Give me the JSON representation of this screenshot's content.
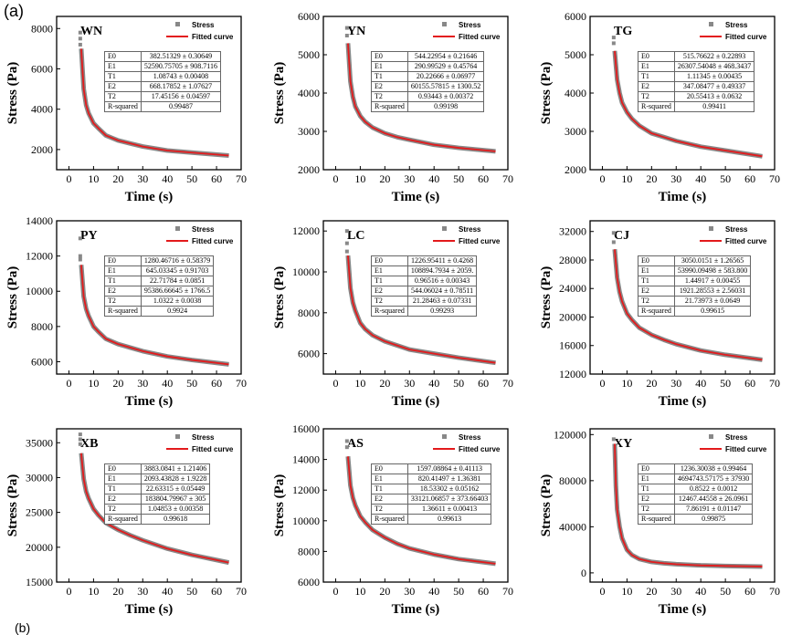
{
  "figure_labels": {
    "a": "(a)",
    "b": "(b)"
  },
  "chart_data": [
    {
      "type": "line",
      "title": "WN",
      "xlabel": "Time (s)",
      "ylabel": "Stress (Pa)",
      "xlim": [
        -5,
        70
      ],
      "ylim": [
        1000,
        8600
      ],
      "xticks": [
        0,
        10,
        20,
        30,
        40,
        50,
        60,
        70
      ],
      "yticks": [
        2000,
        4000,
        6000,
        8000
      ],
      "legend": [
        "Stress",
        "Fitted curve"
      ],
      "legend_position": "top-right",
      "scatter_start": [
        7800,
        7500,
        7200
      ],
      "x": [
        5,
        6,
        7,
        8,
        10,
        12,
        15,
        20,
        25,
        30,
        40,
        50,
        65
      ],
      "y": [
        7000,
        5000,
        4200,
        3800,
        3300,
        3050,
        2700,
        2450,
        2300,
        2150,
        1950,
        1850,
        1700
      ],
      "params": [
        [
          "E0",
          "382.51329 ± 0.30649"
        ],
        [
          "E1",
          "52590.75705 ± 908.7116"
        ],
        [
          "T1",
          "1.08743 ± 0.00408"
        ],
        [
          "E2",
          "668.17852 ± 1.07627"
        ],
        [
          "T2",
          "17.45156 ± 0.04597"
        ],
        [
          "R-squared",
          "0.99487"
        ]
      ]
    },
    {
      "type": "line",
      "title": "YN",
      "xlabel": "Time (s)",
      "ylabel": "Stress (Pa)",
      "xlim": [
        -5,
        70
      ],
      "ylim": [
        2000,
        6000
      ],
      "xticks": [
        0,
        10,
        20,
        30,
        40,
        50,
        60,
        70
      ],
      "yticks": [
        2000,
        3000,
        4000,
        5000,
        6000
      ],
      "legend": [
        "Stress",
        "Fitted curve"
      ],
      "legend_position": "top-right",
      "scatter_start": [
        5700,
        5500
      ],
      "x": [
        5,
        6,
        7,
        8,
        10,
        12,
        15,
        20,
        25,
        30,
        40,
        50,
        65
      ],
      "y": [
        5300,
        4300,
        3900,
        3650,
        3400,
        3250,
        3100,
        2950,
        2850,
        2780,
        2650,
        2570,
        2480
      ],
      "params": [
        [
          "E0",
          "544.22954 ± 0.21646"
        ],
        [
          "E1",
          "290.99529 ± 0.45764"
        ],
        [
          "T1",
          "20.22666 ± 0.06977"
        ],
        [
          "E2",
          "60155.57815 ± 1300.52"
        ],
        [
          "T2",
          "0.93443 ± 0.00372"
        ],
        [
          "R-squared",
          "0.99198"
        ]
      ]
    },
    {
      "type": "line",
      "title": "TG",
      "xlabel": "Time (s)",
      "ylabel": "Stress (Pa)",
      "xlim": [
        -5,
        70
      ],
      "ylim": [
        2000,
        6000
      ],
      "xticks": [
        0,
        10,
        20,
        30,
        40,
        50,
        60,
        70
      ],
      "yticks": [
        2000,
        3000,
        4000,
        5000,
        6000
      ],
      "legend": [
        "Stress",
        "Fitted curve"
      ],
      "legend_position": "top-right",
      "scatter_start": [
        5450,
        5300
      ],
      "x": [
        5,
        6,
        7,
        8,
        10,
        12,
        15,
        20,
        25,
        30,
        40,
        50,
        65
      ],
      "y": [
        5100,
        4350,
        4000,
        3750,
        3500,
        3330,
        3150,
        2950,
        2850,
        2750,
        2600,
        2500,
        2350
      ],
      "params": [
        [
          "E0",
          "515.76622 ± 0.22893"
        ],
        [
          "E1",
          "26307.54048 ± 468.3437"
        ],
        [
          "T1",
          "1.11345 ± 0.00435"
        ],
        [
          "E2",
          "347.08477 ± 0.49337"
        ],
        [
          "T2",
          "20.55413 ± 0.0632"
        ],
        [
          "R-squared",
          "0.99411"
        ]
      ]
    },
    {
      "type": "line",
      "title": "PY",
      "xlabel": "Time (s)",
      "ylabel": "Stress (Pa)",
      "xlim": [
        -5,
        70
      ],
      "ylim": [
        5300,
        14000
      ],
      "xticks": [
        0,
        10,
        20,
        30,
        40,
        50,
        60,
        70
      ],
      "yticks": [
        6000,
        8000,
        10000,
        12000,
        14000
      ],
      "legend": [
        "Stress",
        "Fitted curve"
      ],
      "legend_position": "top-right",
      "scatter_start": [
        13000,
        12000,
        11800
      ],
      "x": [
        5,
        6,
        7,
        8,
        10,
        12,
        15,
        20,
        25,
        30,
        40,
        50,
        65
      ],
      "y": [
        11500,
        9700,
        9000,
        8600,
        8000,
        7700,
        7300,
        7000,
        6800,
        6600,
        6300,
        6100,
        5850
      ],
      "params": [
        [
          "E0",
          "1280.46716 ± 0.58379"
        ],
        [
          "E1",
          "645.03345 ± 0.91703"
        ],
        [
          "T1",
          "22.71784 ± 0.0851"
        ],
        [
          "E2",
          "95386.66645 ± 1766.5"
        ],
        [
          "T2",
          "1.0322 ± 0.0038"
        ],
        [
          "R-squared",
          "0.9924"
        ]
      ]
    },
    {
      "type": "line",
      "title": "LC",
      "xlabel": "Time (s)",
      "ylabel": "Stress (Pa)",
      "xlim": [
        -5,
        70
      ],
      "ylim": [
        5000,
        12500
      ],
      "xticks": [
        0,
        10,
        20,
        30,
        40,
        50,
        60,
        70
      ],
      "yticks": [
        6000,
        8000,
        10000,
        12000
      ],
      "legend": [
        "Stress",
        "Fitted curve"
      ],
      "legend_position": "top-right",
      "scatter_start": [
        12000,
        11400,
        11000
      ],
      "x": [
        5,
        6,
        7,
        8,
        10,
        12,
        15,
        20,
        25,
        30,
        40,
        50,
        65
      ],
      "y": [
        10800,
        9200,
        8500,
        8100,
        7500,
        7200,
        6900,
        6600,
        6400,
        6200,
        6000,
        5800,
        5550
      ],
      "params": [
        [
          "E0",
          "1226.95411 ± 0.4268"
        ],
        [
          "E1",
          "108894.7934 ± 2059."
        ],
        [
          "T1",
          "0.96516 ± 0.00343"
        ],
        [
          "E2",
          "544.06024 ± 0.78511"
        ],
        [
          "T2",
          "21.28463 ± 0.07331"
        ],
        [
          "R-squared",
          "0.99293"
        ]
      ]
    },
    {
      "type": "line",
      "title": "CJ",
      "xlabel": "Time (s)",
      "ylabel": "Stress (Pa)",
      "xlim": [
        -5,
        70
      ],
      "ylim": [
        12000,
        33500
      ],
      "xticks": [
        0,
        10,
        20,
        30,
        40,
        50,
        60,
        70
      ],
      "yticks": [
        12000,
        16000,
        20000,
        24000,
        28000,
        32000
      ],
      "legend": [
        "Stress",
        "Fitted curve"
      ],
      "legend_position": "top-right",
      "scatter_start": [
        31800,
        30500
      ],
      "x": [
        5,
        6,
        7,
        8,
        10,
        12,
        15,
        20,
        25,
        30,
        40,
        50,
        65
      ],
      "y": [
        29500,
        25500,
        23500,
        22200,
        20500,
        19600,
        18500,
        17500,
        16800,
        16200,
        15300,
        14700,
        14000
      ],
      "params": [
        [
          "E0",
          "3050.0151 ± 1.26565"
        ],
        [
          "E1",
          "53990.09498 ± 583.800"
        ],
        [
          "T1",
          "1.44917 ± 0.00455"
        ],
        [
          "E2",
          "1921.28553 ± 2.56031"
        ],
        [
          "T2",
          "21.73973 ± 0.0649"
        ],
        [
          "R-squared",
          "0.99615"
        ]
      ]
    },
    {
      "type": "line",
      "title": "XB",
      "xlabel": "Time (s)",
      "ylabel": "Stress (Pa)",
      "xlim": [
        -5,
        70
      ],
      "ylim": [
        15000,
        37000
      ],
      "xticks": [
        0,
        10,
        20,
        30,
        40,
        50,
        60,
        70
      ],
      "yticks": [
        15000,
        20000,
        25000,
        30000,
        35000
      ],
      "legend": [
        "Stress",
        "Fitted curve"
      ],
      "legend_position": "top-right",
      "scatter_start": [
        36200,
        35500,
        34800
      ],
      "x": [
        5,
        6,
        7,
        8,
        10,
        12,
        15,
        20,
        25,
        30,
        40,
        50,
        65
      ],
      "y": [
        33500,
        29800,
        28000,
        27000,
        25500,
        24600,
        23500,
        22500,
        21700,
        21000,
        19800,
        18900,
        17800
      ],
      "params": [
        [
          "E0",
          "3883.0841 ± 1.21406"
        ],
        [
          "E1",
          "2093.43828 ± 1.9228"
        ],
        [
          "T1",
          "22.63315 ± 0.05449"
        ],
        [
          "E2",
          "183804.79967 ± 305"
        ],
        [
          "T2",
          "1.04853 ± 0.00358"
        ],
        [
          "R-squared",
          "0.99618"
        ]
      ]
    },
    {
      "type": "line",
      "title": "AS",
      "xlabel": "Time (s)",
      "ylabel": "Stress (Pa)",
      "xlim": [
        -5,
        70
      ],
      "ylim": [
        6000,
        16000
      ],
      "xticks": [
        0,
        10,
        20,
        30,
        40,
        50,
        60,
        70
      ],
      "yticks": [
        6000,
        8000,
        10000,
        12000,
        14000,
        16000
      ],
      "legend": [
        "Stress",
        "Fitted curve"
      ],
      "legend_position": "top-right",
      "scatter_start": [
        15200,
        14800
      ],
      "x": [
        5,
        6,
        7,
        8,
        10,
        12,
        15,
        20,
        25,
        30,
        40,
        50,
        65
      ],
      "y": [
        14200,
        12300,
        11500,
        11000,
        10300,
        9900,
        9400,
        8900,
        8500,
        8200,
        7800,
        7500,
        7200
      ],
      "params": [
        [
          "E0",
          "1597.08864 ± 0.41113"
        ],
        [
          "E1",
          "820.41497 ± 1.36381"
        ],
        [
          "T1",
          "18.53302 ± 0.05162"
        ],
        [
          "E2",
          "33121.06857 ± 373.66403"
        ],
        [
          "T2",
          "1.36611 ± 0.00413"
        ],
        [
          "R-squared",
          "0.99613"
        ]
      ]
    },
    {
      "type": "line",
      "title": "XY",
      "xlabel": "Time (s)",
      "ylabel": "Stress (Pa)",
      "xlim": [
        -5,
        70
      ],
      "ylim": [
        -8000,
        125000
      ],
      "xticks": [
        0,
        10,
        20,
        30,
        40,
        50,
        60,
        70
      ],
      "yticks": [
        0,
        40000,
        80000,
        120000
      ],
      "legend": [
        "Stress",
        "Fitted curve"
      ],
      "legend_position": "top-right",
      "scatter_start": [
        116000
      ],
      "x": [
        5,
        5.5,
        6,
        7,
        8,
        10,
        12,
        15,
        20,
        25,
        30,
        40,
        50,
        65
      ],
      "y": [
        112000,
        75000,
        55000,
        40000,
        30000,
        20000,
        15500,
        12000,
        9500,
        8300,
        7500,
        6500,
        6000,
        5500
      ],
      "params": [
        [
          "E0",
          "1236.30038 ± 0.99464"
        ],
        [
          "E1",
          "4694743.57175 ± 37930"
        ],
        [
          "T1",
          "0.8522 ± 0.0012"
        ],
        [
          "E2",
          "12467.44558 ± 26.0961"
        ],
        [
          "T2",
          "7.86191 ± 0.01147"
        ],
        [
          "R-squared",
          "0.99875"
        ]
      ]
    }
  ],
  "colors": {
    "stress": "#888888",
    "fit": "#e31a1c",
    "axis": "#000000"
  }
}
